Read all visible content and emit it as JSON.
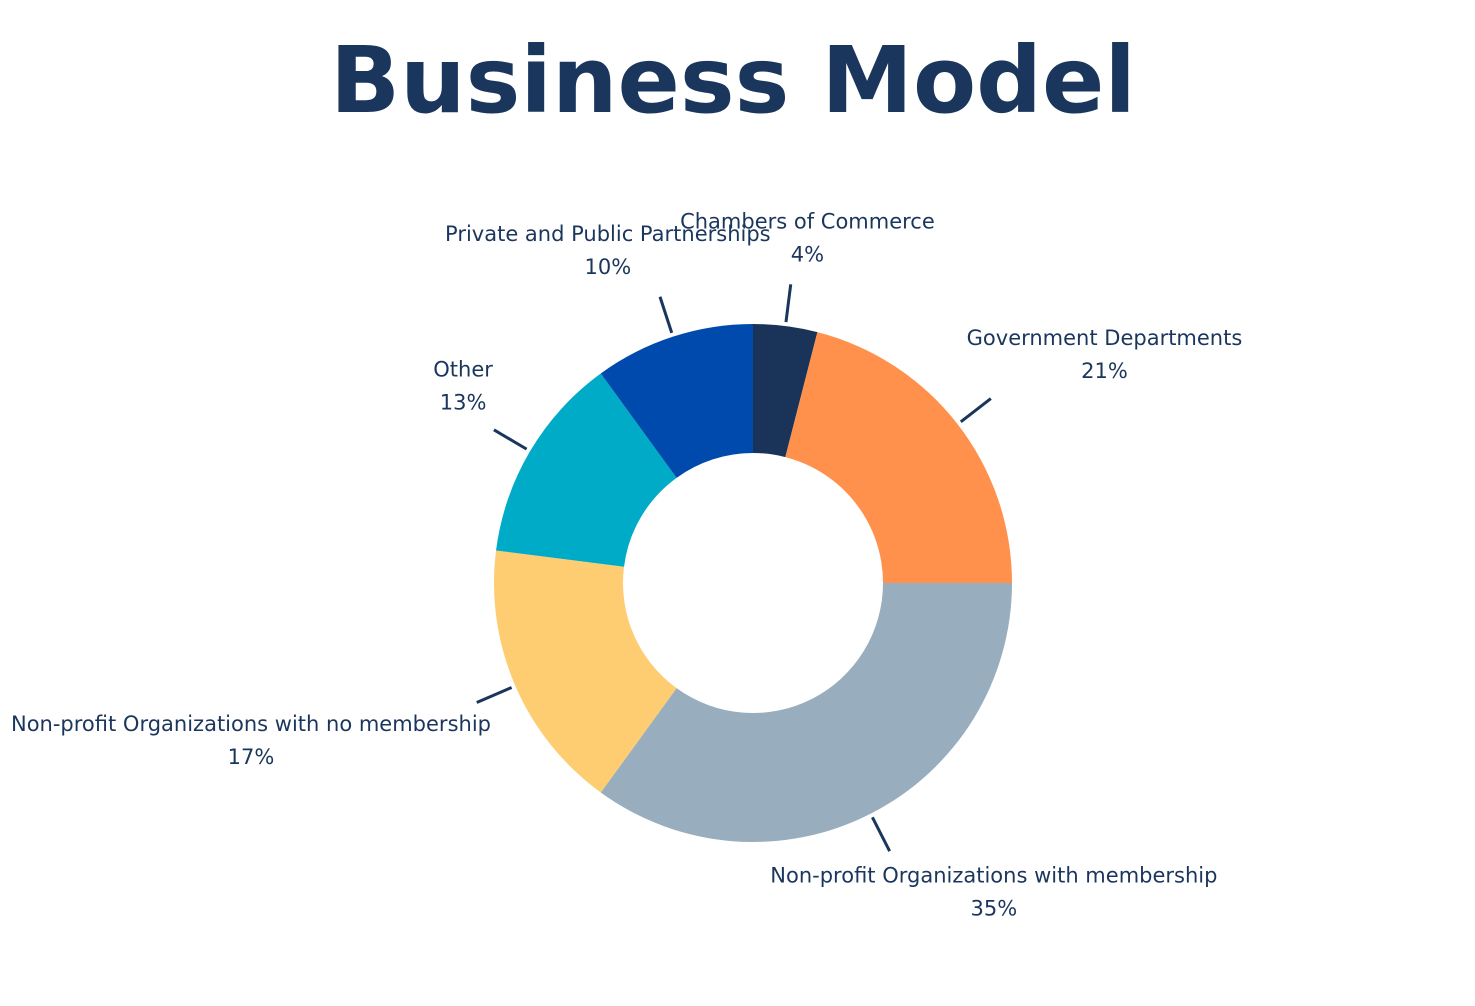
{
  "chart_data": {
    "type": "donut",
    "title": "Business Model",
    "categories": [
      "Chambers of Commerce",
      "Government Departments",
      "Non-profit Organizations with membership",
      "Non-profit Organizations with no membership",
      "Other",
      "Private and Public Partnerships"
    ],
    "values": [
      4,
      21,
      35,
      17,
      13,
      10
    ],
    "value_labels": [
      "4%",
      "21%",
      "35%",
      "17%",
      "13%",
      "10%"
    ],
    "colors": [
      "#1a3459",
      "#ff914d",
      "#98aebe",
      "#ffcd71",
      "#00abc8",
      "#004aad"
    ]
  }
}
